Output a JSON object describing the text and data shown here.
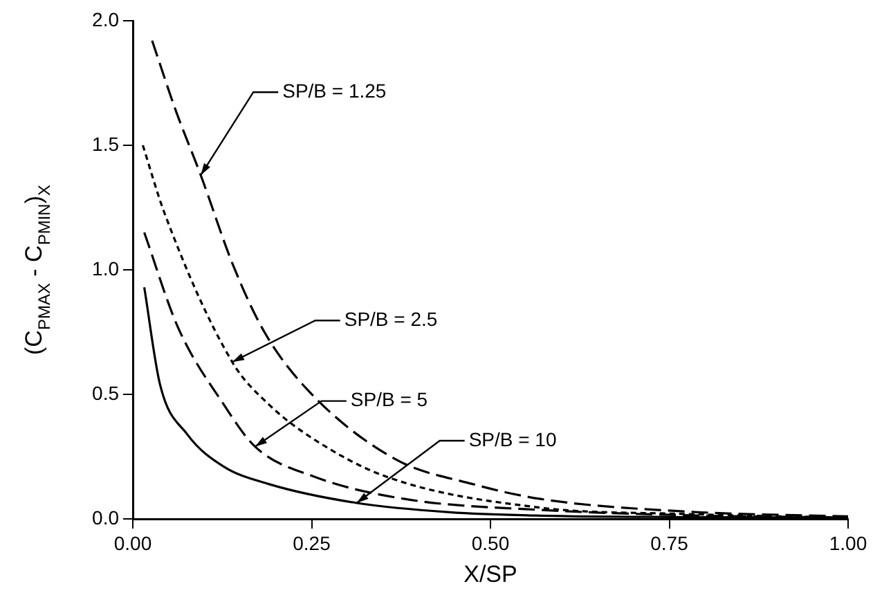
{
  "chart_data": {
    "type": "line",
    "xlabel": "X/SP",
    "ylabel": "(C$_{P}$$_{MAX}$ - C$_{P}$$_{MIN}$)$_{X}$",
    "xlim": [
      0,
      1
    ],
    "xticks": [
      {
        "value": 0,
        "label": "0.00"
      },
      0.25,
      {
        "value": 0.5,
        "label": "0.50"
      },
      0.75,
      {
        "value": 1,
        "label": "1.00"
      }
    ],
    "ylim": [
      0,
      2
    ],
    "yticks": [
      {
        "value": 0,
        "label": "0.0"
      },
      0.5,
      {
        "value": 1,
        "label": "1.0"
      },
      1.5,
      {
        "value": 2,
        "label": "2.0"
      }
    ],
    "grid": false,
    "legend": false,
    "marker": "none",
    "series": [
      {
        "color": "#000000",
        "line_style": "dashed",
        "x": [
          0.027,
          0.06,
          0.095,
          0.14,
          0.184,
          0.247,
          0.367,
          0.475,
          0.57,
          0.77,
          1.0
        ],
        "values": [
          1.92,
          1.64,
          1.38,
          1.02,
          0.75,
          0.51,
          0.24,
          0.14,
          0.08,
          0.03,
          0.01
        ]
      },
      {
        "color": "#000000",
        "line_style": "dotted",
        "x": [
          0.014,
          0.044,
          0.139,
          0.19,
          0.253,
          0.354,
          0.57,
          0.77,
          1.0
        ],
        "values": [
          1.5,
          1.23,
          0.63,
          0.46,
          0.32,
          0.17,
          0.045,
          0.02,
          0.005
        ]
      },
      {
        "color": "#000000",
        "line_style": "dashed",
        "x": [
          0.016,
          0.063,
          0.127,
          0.171,
          0.253,
          0.38,
          0.57,
          0.77,
          1.0
        ],
        "values": [
          1.15,
          0.77,
          0.46,
          0.29,
          0.17,
          0.08,
          0.036,
          0.015,
          0.005
        ]
      },
      {
        "color": "#000000",
        "line_style": "solid",
        "x": [
          0.016,
          0.038,
          0.076,
          0.127,
          0.19,
          0.313,
          0.443,
          0.57,
          0.77,
          1.0
        ],
        "values": [
          0.93,
          0.54,
          0.34,
          0.21,
          0.14,
          0.064,
          0.027,
          0.013,
          0.007,
          0.005
        ]
      }
    ],
    "annotations": [
      {
        "text": "SP/B = 1.25",
        "x": 0.095,
        "y": 1.38
      },
      {
        "text": "SP/B = 2.5",
        "x": 0.139,
        "y": 0.63
      },
      {
        "text": "SP/B = 5",
        "x": 0.171,
        "y": 0.29
      },
      {
        "text": "SP/B = 10",
        "x": 0.313,
        "y": 0.064
      }
    ]
  }
}
